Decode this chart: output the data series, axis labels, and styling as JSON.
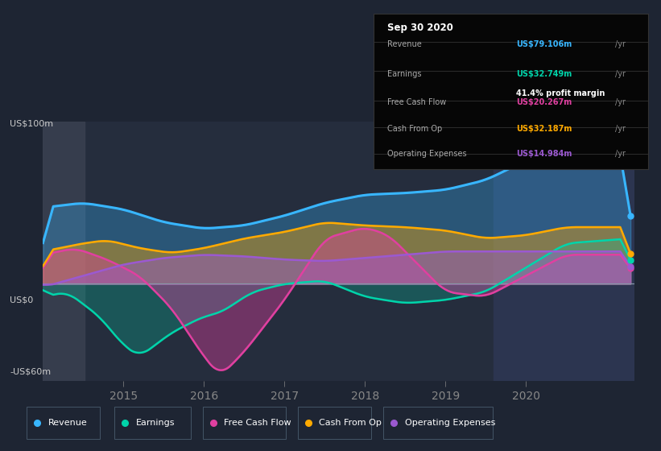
{
  "bg_color": "#1e2533",
  "plot_bg_color": "#252d3d",
  "highlight_bg": "#2c3550",
  "title_box_bg": "#000000",
  "y_max": 100,
  "y_min": -60,
  "y_zero_label": "US$0",
  "y_top_label": "US$100m",
  "y_bot_label": "-US$60m",
  "x_labels": [
    "2015",
    "2016",
    "2017",
    "2018",
    "2019",
    "2020"
  ],
  "colors": {
    "revenue": "#38b6ff",
    "earnings": "#00d4aa",
    "free_cash_flow": "#e040a0",
    "cash_from_op": "#ffaa00",
    "operating_expenses": "#9b59d0"
  },
  "tooltip": {
    "date": "Sep 30 2020",
    "revenue_label": "Revenue",
    "revenue_value": "US$79.106m",
    "earnings_label": "Earnings",
    "earnings_value": "US$32.749m",
    "profit_margin": "41.4% profit margin",
    "fcf_label": "Free Cash Flow",
    "fcf_value": "US$20.267m",
    "cashop_label": "Cash From Op",
    "cashop_value": "US$32.187m",
    "opex_label": "Operating Expenses",
    "opex_value": "US$14.984m"
  },
  "legend": [
    {
      "label": "Revenue",
      "color": "#38b6ff"
    },
    {
      "label": "Earnings",
      "color": "#00d4aa"
    },
    {
      "label": "Free Cash Flow",
      "color": "#e040a0"
    },
    {
      "label": "Cash From Op",
      "color": "#ffaa00"
    },
    {
      "label": "Operating Expenses",
      "color": "#9b59d0"
    }
  ]
}
